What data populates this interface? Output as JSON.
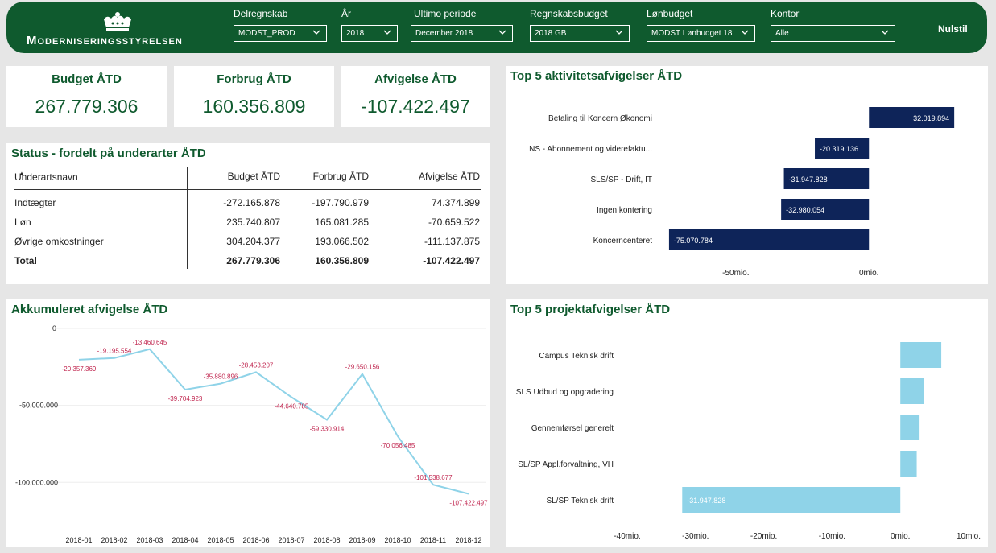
{
  "header": {
    "org_name": "Moderniseringsstyrelsen",
    "filters": [
      {
        "label": "Delregnskab",
        "value": "MODST_PROD"
      },
      {
        "label": "År",
        "value": "2018"
      },
      {
        "label": "Ultimo periode",
        "value": "December 2018"
      },
      {
        "label": "Regnskabsbudget",
        "value": "2018 GB"
      },
      {
        "label": "Lønbudget",
        "value": "MODST Lønbudget 18"
      },
      {
        "label": "Kontor",
        "value": "Alle"
      }
    ],
    "reset_label": "Nulstil"
  },
  "kpis": [
    {
      "title": "Budget ÅTD",
      "value": "267.779.306"
    },
    {
      "title": "Forbrug ÅTD",
      "value": "160.356.809"
    },
    {
      "title": "Afvigelse ÅTD",
      "value": "-107.422.497"
    }
  ],
  "status_table": {
    "title": "Status - fordelt på underarter ÅTD",
    "columns": [
      "Underartsnavn",
      "Budget ÅTD",
      "Forbrug ÅTD",
      "Afvigelse ÅTD"
    ],
    "rows": [
      [
        "Indtægter",
        "-272.165.878",
        "-197.790.979",
        "74.374.899"
      ],
      [
        "Løn",
        "235.740.807",
        "165.081.285",
        "-70.659.522"
      ],
      [
        "Øvrige omkostninger",
        "304.204.377",
        "193.066.502",
        "-111.137.875"
      ]
    ],
    "total": [
      "Total",
      "267.779.306",
      "160.356.809",
      "-107.422.497"
    ]
  },
  "chart_data": [
    {
      "id": "top5_activity",
      "type": "bar",
      "orientation": "horizontal",
      "title": "Top 5 aktivitetsafvigelser ÅTD",
      "categories": [
        "Betaling til Koncern Økonomi",
        "NS - Abonnement og viderefaktu...",
        "SLS/SP - Drift, IT",
        "Ingen kontering",
        "Koncerncenteret"
      ],
      "values": [
        32019894,
        -20319136,
        -31947828,
        -32980054,
        -75070784
      ],
      "data_labels": [
        "32.019.894",
        "-20.319.136",
        "-31.947.828",
        "-32.980.054",
        "-75.070.784"
      ],
      "x_ticks": [
        {
          "value": -50000000,
          "label": "-50mio."
        },
        {
          "value": 0,
          "label": "0mio."
        }
      ],
      "xlim": [
        -82000000,
        48000000
      ],
      "color": "#0e2459"
    },
    {
      "id": "accumulated",
      "type": "line",
      "title": "Akkumuleret afvigelse ÅTD",
      "categories": [
        "2018-01",
        "2018-02",
        "2018-03",
        "2018-04",
        "2018-05",
        "2018-06",
        "2018-07",
        "2018-08",
        "2018-09",
        "2018-10",
        "2018-11",
        "2018-12"
      ],
      "values": [
        -20357369,
        -19195554,
        -13460645,
        -39704923,
        -35880896,
        -28453207,
        -44640785,
        -59330914,
        -29650156,
        -70056485,
        -101538677,
        -107422497
      ],
      "data_labels": [
        "-20.357.369",
        "-19.195.554",
        "-13.460.645",
        "-39.704.923",
        "-35.880.896",
        "-28.453.207",
        "-44.640.785",
        "-59.330.914",
        "-29.650.156",
        "-70.056.485",
        "-101.538.677",
        "-107.422.497"
      ],
      "y_ticks": [
        {
          "value": 0,
          "label": "0"
        },
        {
          "value": -50000000,
          "label": "-50.000.000"
        },
        {
          "value": -100000000,
          "label": "-100.000.000"
        }
      ],
      "ylim": [
        -115000000,
        0
      ],
      "line_color": "#8fd3e8",
      "label_color": "#c0264f"
    },
    {
      "id": "top5_project",
      "type": "bar",
      "orientation": "horizontal",
      "title": "Top 5 projektafvigelser ÅTD",
      "categories": [
        "Campus Teknisk drift",
        "SLS Udbud og opgradering",
        "Gennemførsel generelt",
        "SL/SP Appl.forvaltning, VH",
        "SL/SP Teknisk drift"
      ],
      "values": [
        6000000,
        3500000,
        2700000,
        2400000,
        -31947828
      ],
      "data_labels": [
        "",
        "",
        "",
        "",
        "-31.947.828"
      ],
      "x_ticks": [
        {
          "value": -40000000,
          "label": "-40mio."
        },
        {
          "value": -30000000,
          "label": "-30mio."
        },
        {
          "value": -20000000,
          "label": "-20mio."
        },
        {
          "value": -10000000,
          "label": "-10mio."
        },
        {
          "value": 0,
          "label": "0mio."
        },
        {
          "value": 10000000,
          "label": "10mio."
        }
      ],
      "xlim": [
        -40000000,
        10000000
      ],
      "color": "#8fd3e8"
    }
  ]
}
